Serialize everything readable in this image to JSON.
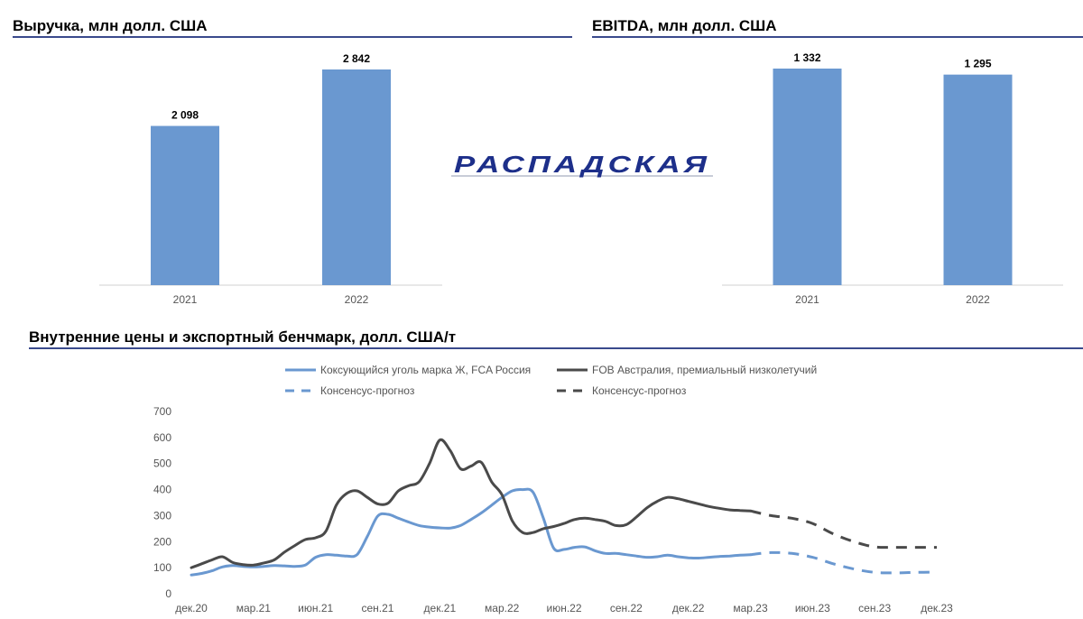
{
  "logo": {
    "text": "РАСПАДСКАЯ",
    "color": "#1d2f8a"
  },
  "chart_data": [
    {
      "id": "revenue",
      "type": "bar",
      "title": "Выручка, млн долл. США",
      "categories": [
        "2021",
        "2022"
      ],
      "values": [
        2098,
        2842
      ],
      "value_labels": [
        "2 098",
        "2 842"
      ],
      "ylim": [
        0,
        3200
      ],
      "color": "#6a98d0"
    },
    {
      "id": "ebitda",
      "type": "bar",
      "title": "EBITDA, млн долл. США",
      "categories": [
        "2021",
        "2022"
      ],
      "values": [
        1332,
        1295
      ],
      "value_labels": [
        "1 332",
        "1 295"
      ],
      "ylim": [
        0,
        1500
      ],
      "color": "#6a98d0"
    },
    {
      "id": "prices",
      "type": "line",
      "title": "Внутренние цены и экспортный бенчмарк, долл. США/т",
      "x_ticks": [
        "дек.20",
        "мар.21",
        "июн.21",
        "сен.21",
        "дек.21",
        "мар.22",
        "июн.22",
        "сен.22",
        "дек.22",
        "мар.23",
        "июн.23",
        "сен.23",
        "дек.23"
      ],
      "y_ticks": [
        "0",
        "100",
        "200",
        "300",
        "400",
        "500",
        "600",
        "700"
      ],
      "ylim": [
        0,
        700
      ],
      "xlim": [
        0,
        36
      ],
      "series": [
        {
          "name": "Коксующийся уголь марка Ж, FCA Россия",
          "color": "#6a98d0",
          "style": "solid",
          "x": [
            0,
            0.5,
            1,
            1.5,
            2,
            2.5,
            3,
            3.5,
            4,
            4.5,
            5,
            5.5,
            6,
            6.5,
            7,
            7.5,
            8,
            8.5,
            9,
            9.5,
            10,
            10.5,
            11,
            11.5,
            12,
            12.5,
            13,
            13.5,
            14,
            14.5,
            15,
            15.5,
            16,
            16.5,
            17,
            17.5,
            18,
            18.5,
            19,
            19.5,
            20,
            20.5,
            21,
            21.5,
            22,
            22.5,
            23,
            23.5,
            24,
            24.5,
            25,
            25.5,
            26,
            26.5,
            27
          ],
          "values": [
            72,
            78,
            88,
            103,
            108,
            105,
            103,
            105,
            108,
            107,
            105,
            110,
            140,
            150,
            148,
            145,
            150,
            220,
            298,
            305,
            290,
            275,
            262,
            256,
            253,
            252,
            262,
            285,
            310,
            340,
            370,
            395,
            400,
            390,
            290,
            175,
            170,
            178,
            180,
            165,
            155,
            155,
            150,
            145,
            140,
            142,
            148,
            142,
            138,
            137,
            140,
            143,
            145,
            148,
            150
          ]
        },
        {
          "name": "FOB Австралия, премиальный низколетучий",
          "color": "#4a4a4a",
          "style": "solid",
          "x": [
            0,
            0.5,
            1,
            1.5,
            2,
            2.5,
            3,
            3.5,
            4,
            4.5,
            5,
            5.5,
            6,
            6.5,
            7,
            7.5,
            8,
            8.5,
            9,
            9.5,
            10,
            10.5,
            11,
            11.5,
            12,
            12.5,
            13,
            13.5,
            14,
            14.5,
            15,
            15.5,
            16,
            16.5,
            17,
            17.5,
            18,
            18.5,
            19,
            19.5,
            20,
            20.5,
            21,
            21.5,
            22,
            22.5,
            23,
            23.5,
            24,
            24.5,
            25,
            25.5,
            26,
            26.5,
            27
          ],
          "values": [
            100,
            115,
            130,
            142,
            120,
            112,
            110,
            118,
            130,
            160,
            185,
            208,
            215,
            240,
            340,
            385,
            395,
            370,
            345,
            348,
            395,
            415,
            430,
            500,
            590,
            550,
            480,
            490,
            505,
            430,
            380,
            280,
            235,
            235,
            250,
            258,
            270,
            285,
            290,
            285,
            278,
            262,
            265,
            295,
            330,
            355,
            370,
            365,
            355,
            345,
            335,
            328,
            322,
            320,
            318
          ]
        },
        {
          "name": "Консенсус-прогноз",
          "color": "#6a98d0",
          "style": "dashed",
          "x": [
            27,
            28,
            29,
            30,
            31,
            32,
            33,
            34,
            35,
            36
          ],
          "values": [
            150,
            158,
            155,
            140,
            115,
            95,
            82,
            80,
            82,
            83
          ]
        },
        {
          "name": "Консенсус-прогноз",
          "color": "#4a4a4a",
          "style": "dashed",
          "x": [
            27,
            28,
            29,
            30,
            31,
            32,
            33,
            34,
            35,
            36
          ],
          "values": [
            318,
            300,
            290,
            270,
            230,
            200,
            180,
            178,
            178,
            178
          ]
        }
      ]
    }
  ]
}
